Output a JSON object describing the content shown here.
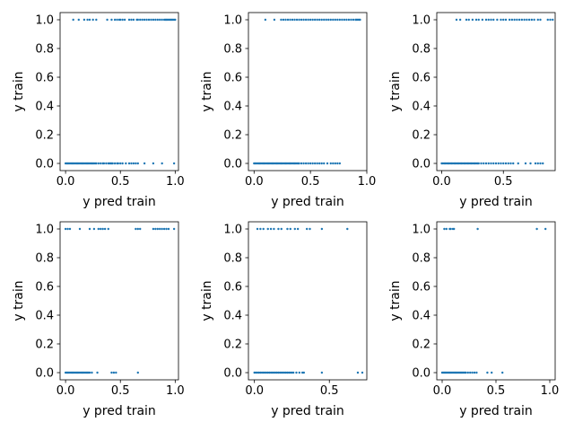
{
  "figure": {
    "background": "#ffffff",
    "marker_color": "#1f77b4"
  },
  "chart_data": [
    {
      "type": "scatter",
      "title": "",
      "xlabel": "y pred train",
      "ylabel": "y train",
      "xlim": [
        -0.05,
        1.03
      ],
      "ylim": [
        -0.05,
        1.05
      ],
      "xticks": [
        {
          "v": 0.0,
          "label": "0.0"
        },
        {
          "v": 0.5,
          "label": "0.5"
        },
        {
          "v": 1.0,
          "label": "1.0"
        }
      ],
      "yticks": [
        {
          "v": 0.0,
          "label": "0.0"
        },
        {
          "v": 0.2,
          "label": "0.2"
        },
        {
          "v": 0.4,
          "label": "0.4"
        },
        {
          "v": 0.6,
          "label": "0.6"
        },
        {
          "v": 0.8,
          "label": "0.8"
        },
        {
          "v": 1.0,
          "label": "1.0"
        }
      ],
      "grid": false,
      "points": {
        "y1": [
          0.07,
          0.12,
          0.17,
          0.2,
          0.22,
          0.25,
          0.28,
          0.38,
          0.42,
          0.45,
          0.47,
          0.49,
          0.5,
          0.52,
          0.54,
          0.58,
          0.6,
          0.62,
          0.65,
          0.66,
          0.68,
          0.7,
          0.72,
          0.74,
          0.76,
          0.78,
          0.8,
          0.82,
          0.84,
          0.86,
          0.88,
          0.9,
          0.91,
          0.92,
          0.93,
          0.94,
          0.95,
          0.96,
          0.97,
          0.98,
          0.99,
          1.0
        ],
        "y0": [
          0.0,
          0.01,
          0.02,
          0.03,
          0.04,
          0.05,
          0.06,
          0.07,
          0.08,
          0.09,
          0.1,
          0.11,
          0.12,
          0.13,
          0.14,
          0.15,
          0.16,
          0.17,
          0.18,
          0.19,
          0.2,
          0.21,
          0.22,
          0.23,
          0.24,
          0.25,
          0.26,
          0.27,
          0.28,
          0.3,
          0.32,
          0.34,
          0.35,
          0.37,
          0.39,
          0.4,
          0.41,
          0.42,
          0.43,
          0.45,
          0.47,
          0.48,
          0.5,
          0.52,
          0.55,
          0.58,
          0.6,
          0.62,
          0.64,
          0.66,
          0.72,
          0.8,
          0.88,
          0.99
        ]
      }
    },
    {
      "type": "scatter",
      "title": "",
      "xlabel": "y pred train",
      "ylabel": "y train",
      "xlim": [
        -0.05,
        1.0
      ],
      "ylim": [
        -0.05,
        1.05
      ],
      "xticks": [
        {
          "v": 0.0,
          "label": "0.0"
        },
        {
          "v": 0.5,
          "label": "0.5"
        },
        {
          "v": 1.0,
          "label": "1.0"
        }
      ],
      "yticks": [
        {
          "v": 0.0,
          "label": "0.0"
        },
        {
          "v": 0.2,
          "label": "0.2"
        },
        {
          "v": 0.4,
          "label": "0.4"
        },
        {
          "v": 0.6,
          "label": "0.6"
        },
        {
          "v": 0.8,
          "label": "0.8"
        },
        {
          "v": 1.0,
          "label": "1.0"
        }
      ],
      "grid": false,
      "points": {
        "y1": [
          0.1,
          0.18,
          0.24,
          0.26,
          0.28,
          0.3,
          0.32,
          0.34,
          0.36,
          0.38,
          0.4,
          0.42,
          0.44,
          0.46,
          0.48,
          0.5,
          0.52,
          0.54,
          0.56,
          0.58,
          0.6,
          0.62,
          0.64,
          0.66,
          0.68,
          0.7,
          0.72,
          0.74,
          0.76,
          0.78,
          0.8,
          0.82,
          0.84,
          0.86,
          0.88,
          0.9,
          0.91,
          0.92,
          0.93,
          0.94
        ],
        "y0": [
          0.0,
          0.01,
          0.02,
          0.03,
          0.04,
          0.05,
          0.06,
          0.07,
          0.08,
          0.09,
          0.1,
          0.11,
          0.12,
          0.13,
          0.14,
          0.15,
          0.16,
          0.17,
          0.18,
          0.19,
          0.2,
          0.21,
          0.22,
          0.23,
          0.24,
          0.25,
          0.26,
          0.27,
          0.28,
          0.29,
          0.3,
          0.31,
          0.32,
          0.33,
          0.34,
          0.35,
          0.36,
          0.37,
          0.38,
          0.39,
          0.4,
          0.42,
          0.44,
          0.46,
          0.48,
          0.5,
          0.52,
          0.54,
          0.56,
          0.58,
          0.6,
          0.62,
          0.65,
          0.68,
          0.7,
          0.72,
          0.74,
          0.76
        ]
      }
    },
    {
      "type": "scatter",
      "title": "",
      "xlabel": "y pred train",
      "ylabel": "y train",
      "xlim": [
        -0.04,
        0.92
      ],
      "ylim": [
        -0.05,
        1.05
      ],
      "xticks": [
        {
          "v": 0.0,
          "label": "0.0"
        },
        {
          "v": 0.5,
          "label": "0.5"
        }
      ],
      "yticks": [
        {
          "v": 0.0,
          "label": "0.0"
        },
        {
          "v": 0.2,
          "label": "0.2"
        },
        {
          "v": 0.4,
          "label": "0.4"
        },
        {
          "v": 0.6,
          "label": "0.6"
        },
        {
          "v": 0.8,
          "label": "0.8"
        },
        {
          "v": 1.0,
          "label": "1.0"
        }
      ],
      "grid": false,
      "points": {
        "y1": [
          0.12,
          0.15,
          0.2,
          0.22,
          0.25,
          0.28,
          0.3,
          0.33,
          0.36,
          0.38,
          0.4,
          0.42,
          0.45,
          0.48,
          0.5,
          0.52,
          0.55,
          0.57,
          0.59,
          0.61,
          0.63,
          0.65,
          0.67,
          0.69,
          0.71,
          0.73,
          0.75,
          0.78,
          0.8,
          0.86,
          0.88,
          0.9
        ],
        "y0": [
          0.0,
          0.01,
          0.02,
          0.03,
          0.04,
          0.05,
          0.06,
          0.07,
          0.08,
          0.09,
          0.1,
          0.11,
          0.12,
          0.13,
          0.14,
          0.15,
          0.16,
          0.17,
          0.18,
          0.19,
          0.2,
          0.21,
          0.22,
          0.23,
          0.24,
          0.25,
          0.26,
          0.27,
          0.28,
          0.29,
          0.3,
          0.32,
          0.34,
          0.36,
          0.38,
          0.4,
          0.42,
          0.44,
          0.46,
          0.48,
          0.5,
          0.52,
          0.54,
          0.56,
          0.58,
          0.62,
          0.68,
          0.72,
          0.76,
          0.78,
          0.8,
          0.82
        ]
      }
    },
    {
      "type": "scatter",
      "title": "",
      "xlabel": "y pred train",
      "ylabel": "y train",
      "xlim": [
        -0.05,
        1.03
      ],
      "ylim": [
        -0.05,
        1.05
      ],
      "xticks": [
        {
          "v": 0.0,
          "label": "0.0"
        },
        {
          "v": 0.5,
          "label": "0.5"
        },
        {
          "v": 1.0,
          "label": "1.0"
        }
      ],
      "yticks": [
        {
          "v": 0.0,
          "label": "0.0"
        },
        {
          "v": 0.2,
          "label": "0.2"
        },
        {
          "v": 0.4,
          "label": "0.4"
        },
        {
          "v": 0.6,
          "label": "0.6"
        },
        {
          "v": 0.8,
          "label": "0.8"
        },
        {
          "v": 1.0,
          "label": "1.0"
        }
      ],
      "grid": false,
      "points": {
        "y1": [
          0.0,
          0.02,
          0.04,
          0.13,
          0.22,
          0.26,
          0.3,
          0.32,
          0.34,
          0.36,
          0.39,
          0.64,
          0.66,
          0.68,
          0.8,
          0.82,
          0.84,
          0.86,
          0.88,
          0.9,
          0.92,
          0.94,
          0.99
        ],
        "y0": [
          0.0,
          0.01,
          0.02,
          0.03,
          0.04,
          0.05,
          0.06,
          0.07,
          0.08,
          0.09,
          0.1,
          0.11,
          0.12,
          0.13,
          0.14,
          0.15,
          0.16,
          0.17,
          0.18,
          0.19,
          0.2,
          0.21,
          0.22,
          0.24,
          0.29,
          0.42,
          0.44,
          0.46,
          0.66
        ]
      }
    },
    {
      "type": "scatter",
      "title": "",
      "xlabel": "y pred train",
      "ylabel": "y train",
      "xlim": [
        -0.04,
        0.75
      ],
      "ylim": [
        -0.05,
        1.05
      ],
      "xticks": [
        {
          "v": 0.0,
          "label": "0.0"
        },
        {
          "v": 0.5,
          "label": "0.5"
        }
      ],
      "yticks": [
        {
          "v": 0.0,
          "label": "0.0"
        },
        {
          "v": 0.2,
          "label": "0.2"
        },
        {
          "v": 0.4,
          "label": "0.4"
        },
        {
          "v": 0.6,
          "label": "0.6"
        },
        {
          "v": 0.8,
          "label": "0.8"
        },
        {
          "v": 1.0,
          "label": "1.0"
        }
      ],
      "grid": false,
      "points": {
        "y1": [
          0.02,
          0.04,
          0.06,
          0.09,
          0.11,
          0.13,
          0.16,
          0.18,
          0.22,
          0.24,
          0.27,
          0.29,
          0.35,
          0.37,
          0.45,
          0.62
        ],
        "y0": [
          0.0,
          0.01,
          0.02,
          0.03,
          0.04,
          0.05,
          0.06,
          0.07,
          0.08,
          0.09,
          0.1,
          0.11,
          0.12,
          0.13,
          0.14,
          0.15,
          0.16,
          0.17,
          0.18,
          0.19,
          0.2,
          0.21,
          0.22,
          0.23,
          0.24,
          0.25,
          0.26,
          0.28,
          0.3,
          0.32,
          0.33,
          0.45,
          0.69,
          0.72
        ]
      }
    },
    {
      "type": "scatter",
      "title": "",
      "xlabel": "y pred train",
      "ylabel": "y train",
      "xlim": [
        -0.05,
        1.05
      ],
      "ylim": [
        -0.05,
        1.05
      ],
      "xticks": [
        {
          "v": 0.0,
          "label": "0.0"
        },
        {
          "v": 0.5,
          "label": "0.5"
        },
        {
          "v": 1.0,
          "label": "1.0"
        }
      ],
      "yticks": [
        {
          "v": 0.0,
          "label": "0.0"
        },
        {
          "v": 0.2,
          "label": "0.2"
        },
        {
          "v": 0.4,
          "label": "0.4"
        },
        {
          "v": 0.6,
          "label": "0.6"
        },
        {
          "v": 0.8,
          "label": "0.8"
        },
        {
          "v": 1.0,
          "label": "1.0"
        }
      ],
      "grid": false,
      "points": {
        "y1": [
          0.02,
          0.04,
          0.07,
          0.08,
          0.1,
          0.11,
          0.33,
          0.88,
          0.96
        ],
        "y0": [
          0.0,
          0.01,
          0.02,
          0.03,
          0.04,
          0.05,
          0.06,
          0.07,
          0.08,
          0.09,
          0.1,
          0.11,
          0.12,
          0.13,
          0.14,
          0.15,
          0.16,
          0.17,
          0.18,
          0.19,
          0.2,
          0.21,
          0.22,
          0.24,
          0.26,
          0.28,
          0.3,
          0.32,
          0.42,
          0.46,
          0.56
        ]
      }
    }
  ]
}
